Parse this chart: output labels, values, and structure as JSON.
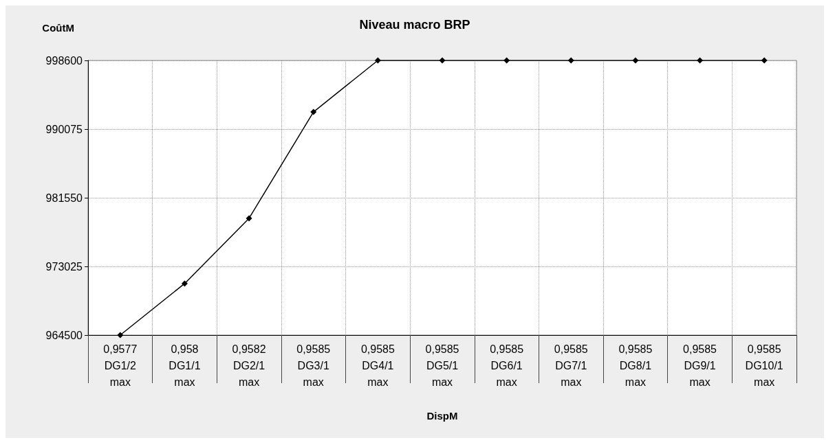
{
  "chart_data": {
    "type": "line",
    "title": "Niveau macro BRP",
    "ylabel": "CoûtM",
    "xlabel": "DispM",
    "categories": [
      "0,9577 DG1/2 max",
      "0,958 DG1/1 max",
      "0,9582 DG2/1 max",
      "0,9585 DG3/1 max",
      "0,9585 DG4/1 max",
      "0,9585 DG5/1 max",
      "0,9585 DG6/1 max",
      "0,9585 DG7/1 max",
      "0,9585 DG8/1 max",
      "0,9585 DG9/1 max",
      "0,9585 DG10/1 max"
    ],
    "series": [
      {
        "color": "#000000",
        "values": [
          964500,
          970900,
          979000,
          992200,
          998600,
          998600,
          998600,
          998600,
          998600,
          998600,
          998600
        ]
      }
    ],
    "ylim": [
      964500,
      998600
    ],
    "yticks": [
      964500,
      973025,
      981550,
      990075,
      998600
    ],
    "grid": true,
    "marker": "diamond",
    "line_style": "solid"
  }
}
